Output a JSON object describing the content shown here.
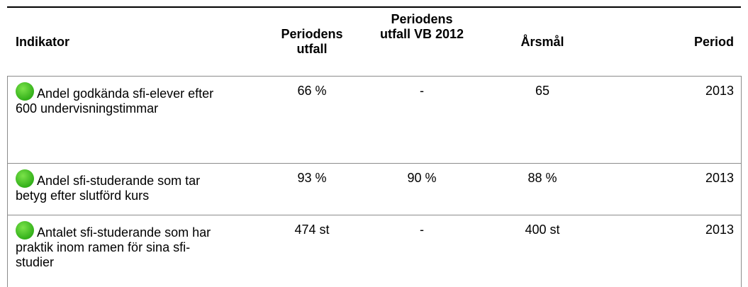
{
  "table": {
    "headers": [
      "Indikator",
      "Periodens utfall",
      "Periodens utfall VB 2012",
      "Årsmål",
      "Period"
    ],
    "rows": [
      [
        "Andel godkända sfi-elever efter 600 undervisningstimmar",
        "66 %",
        "-",
        "65",
        "2013"
      ],
      [
        "Andel sfi-studerande som tar betyg efter slutförd kurs",
        "93 %",
        "90 %",
        "88 %",
        "2013"
      ],
      [
        "Antalet sfi-studerande som har praktik inom ramen för sina sfi-studier",
        "474 st",
        "-",
        "400 st",
        "2013"
      ]
    ]
  }
}
